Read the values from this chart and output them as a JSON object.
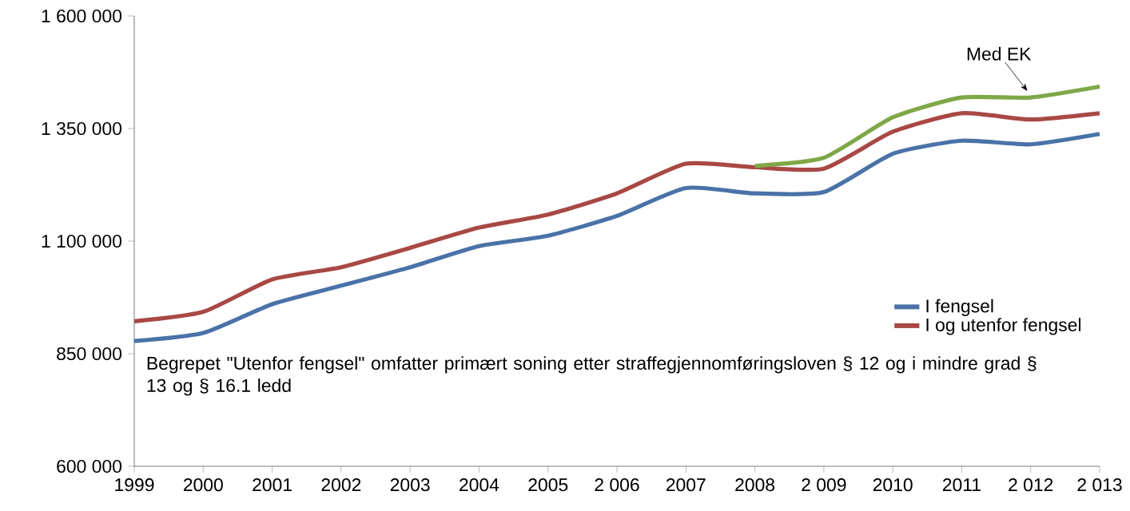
{
  "chart_data": {
    "type": "line",
    "categories": [
      "1999",
      "2000",
      "2001",
      "2002",
      "2003",
      "2004",
      "2005",
      "2 006",
      "2007",
      "2008",
      "2 009",
      "2010",
      "2011",
      "2 012",
      "2 013"
    ],
    "series": [
      {
        "name": "I  fengsel",
        "color": "#4a72a8",
        "values": [
          878000,
          896000,
          960000,
          1001000,
          1042000,
          1089000,
          1112000,
          1156000,
          1218000,
          1206000,
          1209000,
          1294000,
          1323000,
          1315000,
          1338000
        ]
      },
      {
        "name": "I og utenfor fengsel",
        "color": "#a84844",
        "values": [
          922000,
          943000,
          1015000,
          1042000,
          1085000,
          1130000,
          1159000,
          1206000,
          1272000,
          1264000,
          1261000,
          1343000,
          1384000,
          1370000,
          1384000
        ]
      },
      {
        "color": "#7fa747",
        "values": [
          null,
          null,
          null,
          null,
          null,
          null,
          null,
          null,
          null,
          1267000,
          1285000,
          1375000,
          1419000,
          1419000,
          1443000
        ]
      }
    ],
    "ylim": [
      600000,
      1600000
    ],
    "yticks": [
      {
        "value": 600000,
        "label": "600 000"
      },
      {
        "value": 850000,
        "label": "850 000"
      },
      {
        "value": 1100000,
        "label": "1 100 000"
      },
      {
        "value": 1350000,
        "label": "1 350 000"
      },
      {
        "value": 1600000,
        "label": "1 600 000"
      }
    ],
    "grid": false,
    "legend": "bottom right",
    "annotations": [
      {
        "text": "Med EK",
        "x": "2 012",
        "y": 1419000
      },
      "Begrepet \"Utenfor fengsel\" omfatter primært soning etter straffegjennomføringsloven § 12 og i mindre grad § 13 og § 16.1 ledd"
    ]
  }
}
